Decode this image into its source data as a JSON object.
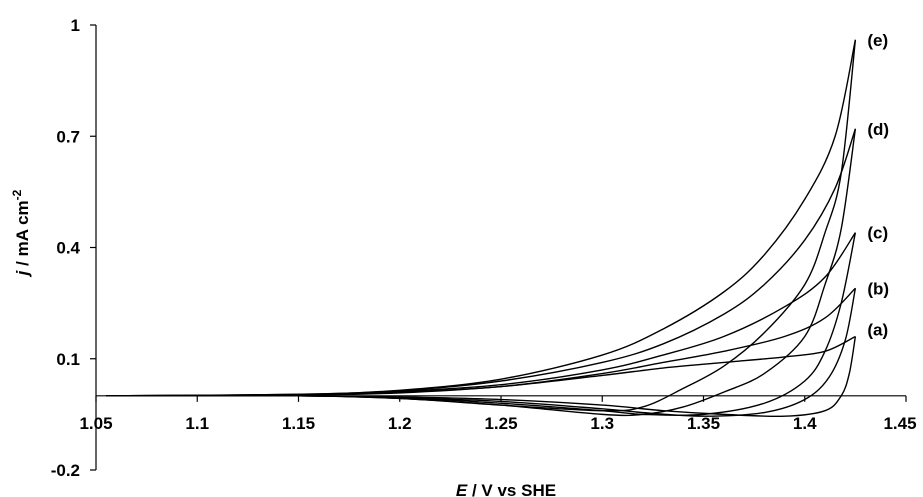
{
  "chart_data": {
    "type": "line",
    "title": "",
    "xlabel": {
      "italic": "E",
      "rest": " / V vs SHE"
    },
    "ylabel": {
      "italic": "j",
      "rest": " / mA cm",
      "sup": "-2"
    },
    "xlim": [
      1.05,
      1.45
    ],
    "ylim": [
      -0.2,
      1.0
    ],
    "xticks": [
      "1.05",
      "1.1",
      "1.15",
      "1.2",
      "1.25",
      "1.3",
      "1.35",
      "1.4",
      "1.45"
    ],
    "yticks": [
      "1",
      "0.7",
      "0.4",
      "0.1",
      "-0.2"
    ],
    "grid": false,
    "series": [
      {
        "name": "(a)",
        "forward": [
          [
            1.055,
            0.0
          ],
          [
            1.15,
            0.002
          ],
          [
            1.2,
            0.008
          ],
          [
            1.25,
            0.025
          ],
          [
            1.3,
            0.055
          ],
          [
            1.33,
            0.075
          ],
          [
            1.36,
            0.09
          ],
          [
            1.39,
            0.105
          ],
          [
            1.41,
            0.12
          ],
          [
            1.425,
            0.16
          ]
        ],
        "reverse": [
          [
            1.425,
            0.16
          ],
          [
            1.422,
            0.06
          ],
          [
            1.418,
            0.0
          ],
          [
            1.41,
            -0.04
          ],
          [
            1.39,
            -0.055
          ],
          [
            1.36,
            -0.05
          ],
          [
            1.33,
            -0.04
          ],
          [
            1.3,
            -0.025
          ],
          [
            1.25,
            -0.01
          ],
          [
            1.2,
            -0.003
          ],
          [
            1.15,
            0.0
          ],
          [
            1.055,
            0.0
          ]
        ]
      },
      {
        "name": "(b)",
        "forward": [
          [
            1.055,
            0.0
          ],
          [
            1.15,
            0.003
          ],
          [
            1.2,
            0.01
          ],
          [
            1.25,
            0.025
          ],
          [
            1.3,
            0.06
          ],
          [
            1.33,
            0.09
          ],
          [
            1.36,
            0.12
          ],
          [
            1.39,
            0.16
          ],
          [
            1.41,
            0.21
          ],
          [
            1.425,
            0.29
          ]
        ],
        "reverse": [
          [
            1.425,
            0.29
          ],
          [
            1.42,
            0.15
          ],
          [
            1.412,
            0.05
          ],
          [
            1.4,
            -0.01
          ],
          [
            1.38,
            -0.045
          ],
          [
            1.35,
            -0.055
          ],
          [
            1.32,
            -0.045
          ],
          [
            1.3,
            -0.035
          ],
          [
            1.25,
            -0.015
          ],
          [
            1.2,
            -0.005
          ],
          [
            1.15,
            0.0
          ],
          [
            1.055,
            0.0
          ]
        ]
      },
      {
        "name": "(c)",
        "forward": [
          [
            1.055,
            0.0
          ],
          [
            1.15,
            0.003
          ],
          [
            1.2,
            0.012
          ],
          [
            1.25,
            0.03
          ],
          [
            1.3,
            0.07
          ],
          [
            1.33,
            0.11
          ],
          [
            1.36,
            0.16
          ],
          [
            1.39,
            0.24
          ],
          [
            1.41,
            0.32
          ],
          [
            1.425,
            0.44
          ]
        ],
        "reverse": [
          [
            1.425,
            0.44
          ],
          [
            1.418,
            0.25
          ],
          [
            1.41,
            0.12
          ],
          [
            1.4,
            0.04
          ],
          [
            1.38,
            -0.02
          ],
          [
            1.35,
            -0.05
          ],
          [
            1.32,
            -0.05
          ],
          [
            1.3,
            -0.04
          ],
          [
            1.25,
            -0.02
          ],
          [
            1.2,
            -0.005
          ],
          [
            1.15,
            0.0
          ],
          [
            1.055,
            0.0
          ]
        ]
      },
      {
        "name": "(d)",
        "forward": [
          [
            1.055,
            0.0
          ],
          [
            1.15,
            0.004
          ],
          [
            1.2,
            0.014
          ],
          [
            1.25,
            0.04
          ],
          [
            1.3,
            0.09
          ],
          [
            1.33,
            0.14
          ],
          [
            1.36,
            0.22
          ],
          [
            1.38,
            0.3
          ],
          [
            1.4,
            0.42
          ],
          [
            1.415,
            0.56
          ],
          [
            1.425,
            0.72
          ]
        ],
        "reverse": [
          [
            1.425,
            0.72
          ],
          [
            1.418,
            0.45
          ],
          [
            1.41,
            0.3
          ],
          [
            1.4,
            0.16
          ],
          [
            1.38,
            0.06
          ],
          [
            1.36,
            0.01
          ],
          [
            1.34,
            -0.03
          ],
          [
            1.32,
            -0.05
          ],
          [
            1.3,
            -0.05
          ],
          [
            1.25,
            -0.025
          ],
          [
            1.2,
            -0.007
          ],
          [
            1.15,
            0.0
          ],
          [
            1.055,
            0.0
          ]
        ]
      },
      {
        "name": "(e)",
        "forward": [
          [
            1.055,
            0.0
          ],
          [
            1.15,
            0.004
          ],
          [
            1.2,
            0.015
          ],
          [
            1.25,
            0.045
          ],
          [
            1.3,
            0.11
          ],
          [
            1.33,
            0.18
          ],
          [
            1.36,
            0.28
          ],
          [
            1.38,
            0.38
          ],
          [
            1.4,
            0.53
          ],
          [
            1.415,
            0.7
          ],
          [
            1.425,
            0.96
          ]
        ],
        "reverse": [
          [
            1.425,
            0.96
          ],
          [
            1.418,
            0.6
          ],
          [
            1.41,
            0.44
          ],
          [
            1.4,
            0.3
          ],
          [
            1.38,
            0.17
          ],
          [
            1.36,
            0.08
          ],
          [
            1.34,
            0.02
          ],
          [
            1.32,
            -0.03
          ],
          [
            1.3,
            -0.04
          ],
          [
            1.25,
            -0.025
          ],
          [
            1.2,
            -0.007
          ],
          [
            1.15,
            0.0
          ],
          [
            1.055,
            0.0
          ]
        ]
      }
    ]
  }
}
